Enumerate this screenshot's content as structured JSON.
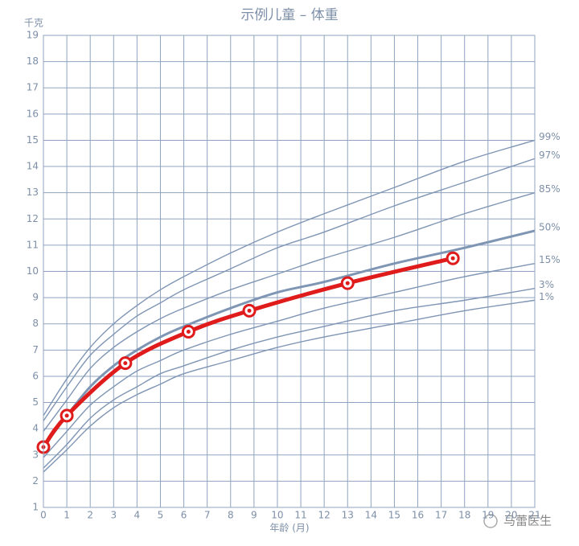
{
  "chart_data": {
    "type": "line",
    "title": "示例儿童 – 体重",
    "ylabel": "千克",
    "xlabel": "年龄 (月)",
    "watermark": "马蕾医生",
    "xlim": [
      0,
      21
    ],
    "ylim": [
      1,
      19
    ],
    "xticks": [
      0,
      1,
      2,
      3,
      4,
      5,
      6,
      7,
      8,
      9,
      10,
      11,
      12,
      13,
      14,
      15,
      16,
      17,
      18,
      19,
      20,
      21
    ],
    "yticks": [
      1,
      2,
      3,
      4,
      5,
      6,
      7,
      8,
      9,
      10,
      11,
      12,
      13,
      14,
      15,
      16,
      17,
      18,
      19
    ],
    "grid": true,
    "x": [
      0,
      1,
      2,
      3,
      4,
      5,
      6,
      8,
      10,
      12,
      15,
      18,
      21
    ],
    "series": [
      {
        "name": "99%",
        "color": "#7f95b4",
        "values": [
          4.5,
          5.9,
          7.1,
          8.0,
          8.7,
          9.3,
          9.8,
          10.7,
          11.5,
          12.2,
          13.2,
          14.2,
          15.0
        ]
      },
      {
        "name": "97%",
        "color": "#7f95b4",
        "values": [
          4.3,
          5.6,
          6.8,
          7.6,
          8.3,
          8.8,
          9.3,
          10.1,
          10.9,
          11.5,
          12.5,
          13.4,
          14.3
        ]
      },
      {
        "name": "85%",
        "color": "#7f95b4",
        "values": [
          3.9,
          5.1,
          6.3,
          7.1,
          7.7,
          8.2,
          8.6,
          9.3,
          9.9,
          10.5,
          11.3,
          12.2,
          13.0
        ]
      },
      {
        "name": "50%",
        "color": "#7f95b4",
        "values": [
          3.3,
          4.5,
          5.6,
          6.4,
          7.0,
          7.5,
          7.9,
          8.6,
          9.2,
          9.6,
          10.3,
          10.9,
          11.55
        ]
      },
      {
        "name": "15%",
        "color": "#7f95b4",
        "values": [
          2.9,
          3.9,
          4.9,
          5.6,
          6.2,
          6.6,
          7.0,
          7.6,
          8.1,
          8.6,
          9.2,
          9.8,
          10.3
        ]
      },
      {
        "name": "3%",
        "color": "#7f95b4",
        "values": [
          2.5,
          3.4,
          4.4,
          5.1,
          5.6,
          6.1,
          6.4,
          7.0,
          7.5,
          7.9,
          8.5,
          8.9,
          9.35
        ]
      },
      {
        "name": "1%",
        "color": "#7f95b4",
        "values": [
          2.35,
          3.2,
          4.1,
          4.8,
          5.3,
          5.7,
          6.1,
          6.6,
          7.1,
          7.5,
          8.0,
          8.5,
          8.9
        ]
      }
    ],
    "child": {
      "color": "#e01b1b",
      "x": [
        0,
        1,
        3.5,
        6.2,
        8.8,
        13,
        17.5
      ],
      "values": [
        3.3,
        4.5,
        6.5,
        7.7,
        8.5,
        9.55,
        10.5
      ]
    }
  }
}
